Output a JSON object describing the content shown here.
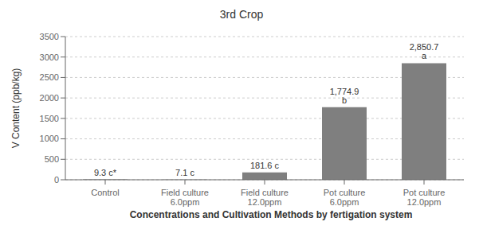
{
  "chart_data": {
    "type": "bar",
    "title": "3rd Crop",
    "xlabel": "Concentrations and Cultivation Methods by fertigation system",
    "ylabel": "V Content (ppb/kg)",
    "categories": [
      "Control",
      "Field culture\n6.0ppm",
      "Field culture\n12.0ppm",
      "Pot culture\n6.0ppm",
      "Pot culture\n12.0ppm"
    ],
    "values": [
      9.3,
      7.1,
      181.6,
      1774.9,
      2850.7
    ],
    "value_labels": [
      "9.3 c*",
      "7.1 c",
      "181.6 c",
      "1,774.9 b",
      "2,850.7 a"
    ],
    "data_labels": true,
    "color": "#7f7f7f",
    "ylim": [
      0,
      3500
    ],
    "yticks": [
      0,
      500,
      1000,
      1500,
      2000,
      2500,
      3000,
      3500
    ],
    "grid": true
  }
}
